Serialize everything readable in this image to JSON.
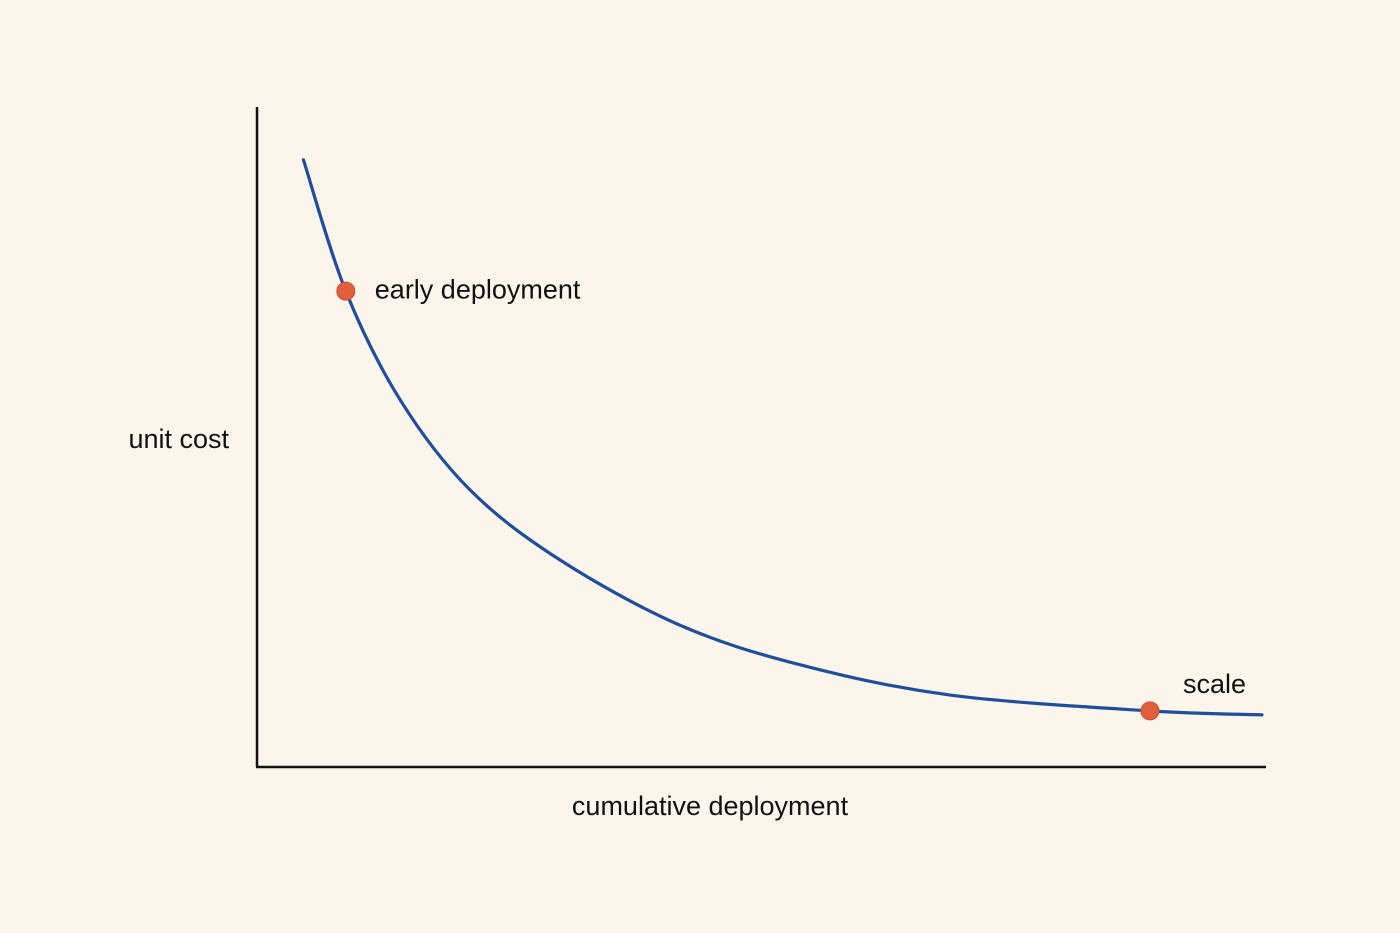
{
  "chart_data": {
    "type": "line",
    "xlabel": "cumulative deployment",
    "ylabel": "unit cost",
    "x": [
      4.6,
      8.8,
      14.2,
      21.1,
      30,
      41.9,
      53.8,
      68.7,
      88.5,
      99.6
    ],
    "series": [
      {
        "color": "#1f4e9a",
        "values": [
          92,
          72.1,
          55.6,
          42,
          31.4,
          21.5,
          15.5,
          10.9,
          8.5,
          7.9
        ]
      }
    ],
    "xlim": [
      0,
      100
    ],
    "ylim": [
      0,
      100
    ],
    "annotations": [
      {
        "text": "early deployment",
        "x": 8.8,
        "y": 72.1,
        "color": "#e0603e"
      },
      {
        "text": "scale",
        "x": 88.5,
        "y": 8.5,
        "color": "#e0603e"
      }
    ]
  }
}
